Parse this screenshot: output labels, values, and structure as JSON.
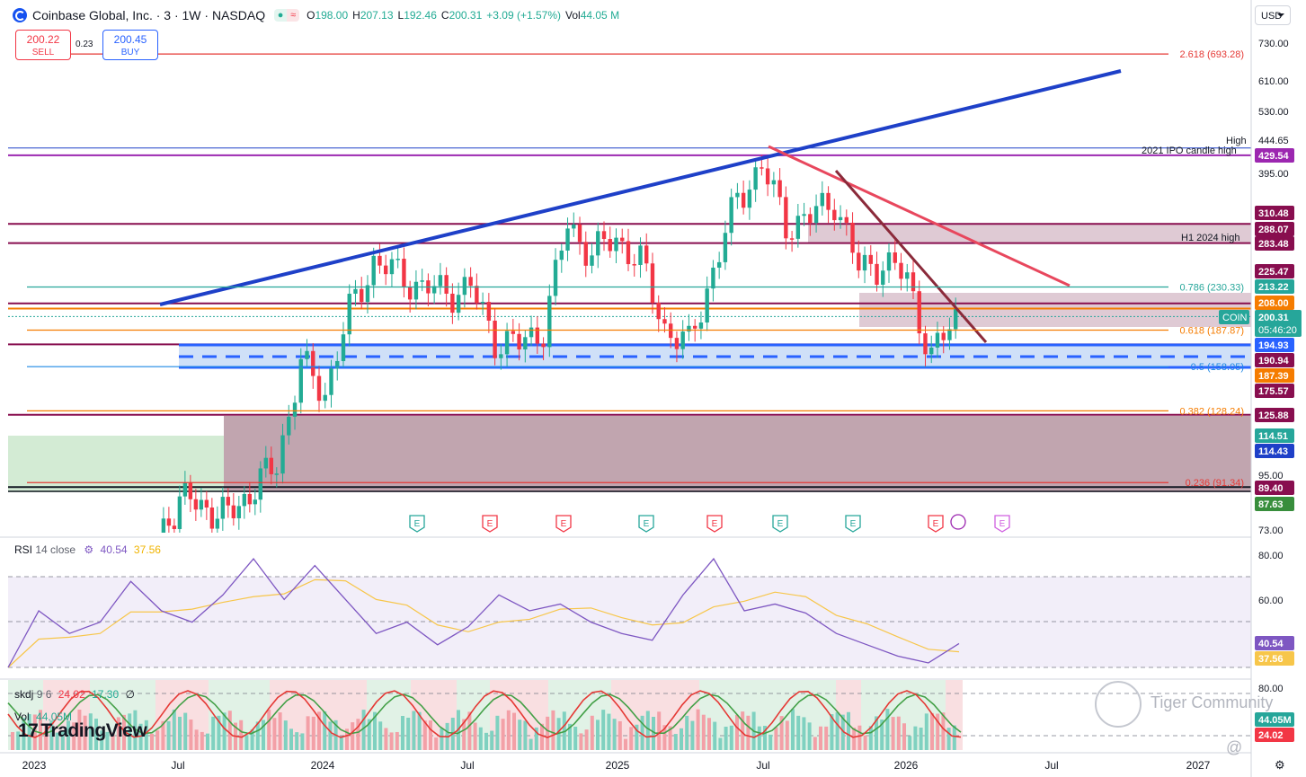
{
  "header": {
    "symbol_title": "Coinbase Global, Inc. · 3 · 1W · NASDAQ",
    "o_label": "O",
    "o_value": "198.00",
    "h_label": "H",
    "h_value": "207.13",
    "l_label": "L",
    "l_value": "192.46",
    "c_label": "C",
    "c_value": "200.31",
    "change": "+3.09 (+1.57%)",
    "vol_label": "Vol",
    "vol_value": "44.05 M",
    "currency": "USD"
  },
  "trade": {
    "sell_price": "200.22",
    "sell_label": "SELL",
    "spread": "0.23",
    "buy_price": "200.45",
    "buy_label": "BUY"
  },
  "rsi_legend": {
    "name": "RSI",
    "params": "14 close",
    "v1": "40.54",
    "v2": "37.56"
  },
  "skdj_legend": {
    "name": "skdj",
    "params": "9 6",
    "v1": "24.02",
    "v2": "17.30",
    "v3": "∅"
  },
  "vol_legend": {
    "name": "Vol",
    "value": "44.05M"
  },
  "watermark": {
    "brand": "TradingView",
    "community": "Tiger Community",
    "at": "@",
    "gear": "⚙"
  },
  "colors": {
    "up": "#22ab94",
    "down": "#f23645",
    "trend_blue": "#1e40c8",
    "trend_red": "#e8475d",
    "trend_dark": "#8b2a3a",
    "purple_line": "#9c27b0",
    "maroon_line": "#880e4f",
    "rsi_line": "#7e57c2",
    "rsi_ma": "#f7c64a",
    "skdj_k": "#e53935",
    "skdj_d": "#43a047"
  },
  "chart_data": {
    "type": "candlestick",
    "symbol": "COIN",
    "timeframe": "1W",
    "y_scale": "log",
    "ylim": [
      73,
      780
    ],
    "y_ticks": [
      "730.00",
      "610.00",
      "530.00",
      "444.65",
      "395.00",
      "310.48",
      "288.07",
      "283.48",
      "225.47",
      "213.22",
      "208.00",
      "200.31",
      "194.93",
      "190.94",
      "187.39",
      "175.57",
      "125.88",
      "114.51",
      "114.43",
      "95.00",
      "89.40",
      "87.63",
      "73.00"
    ],
    "x_labels": [
      "2023",
      "Jul",
      "2024",
      "Jul",
      "2025",
      "Jul",
      "2026",
      "Jul",
      "2027"
    ],
    "last_price": "200.31",
    "countdown": "05:46:20",
    "close_series_approx": [
      {
        "date": "2023-01",
        "value": 40
      },
      {
        "date": "2023-03",
        "value": 60
      },
      {
        "date": "2023-05",
        "value": 55
      },
      {
        "date": "2023-07",
        "value": 85
      },
      {
        "date": "2023-09",
        "value": 78
      },
      {
        "date": "2023-11",
        "value": 100
      },
      {
        "date": "2023-12",
        "value": 160
      },
      {
        "date": "2024-01",
        "value": 140
      },
      {
        "date": "2024-02",
        "value": 205
      },
      {
        "date": "2024-03",
        "value": 260
      },
      {
        "date": "2024-04",
        "value": 245
      },
      {
        "date": "2024-05",
        "value": 230
      },
      {
        "date": "2024-06",
        "value": 225
      },
      {
        "date": "2024-07",
        "value": 230
      },
      {
        "date": "2024-08",
        "value": 180
      },
      {
        "date": "2024-09",
        "value": 175
      },
      {
        "date": "2024-10",
        "value": 190
      },
      {
        "date": "2024-11",
        "value": 310
      },
      {
        "date": "2024-12",
        "value": 270
      },
      {
        "date": "2025-01",
        "value": 290
      },
      {
        "date": "2025-02",
        "value": 260
      },
      {
        "date": "2025-03",
        "value": 190
      },
      {
        "date": "2025-04",
        "value": 175
      },
      {
        "date": "2025-05",
        "value": 250
      },
      {
        "date": "2025-06",
        "value": 350
      },
      {
        "date": "2025-07",
        "value": 410
      },
      {
        "date": "2025-08",
        "value": 310
      },
      {
        "date": "2025-09",
        "value": 320
      },
      {
        "date": "2025-10",
        "value": 350
      },
      {
        "date": "2025-11",
        "value": 250
      },
      {
        "date": "2025-12",
        "value": 260
      },
      {
        "date": "2026-01",
        "value": 240
      },
      {
        "date": "2026-02",
        "value": 165
      },
      {
        "date": "2026-03",
        "value": 200.31
      }
    ],
    "fib_levels": [
      {
        "label": "2.618 (693.28)",
        "value": 693.28
      },
      {
        "label": "0.786 (230.33)",
        "value": 230.33
      },
      {
        "label": "0.618 (187.87)",
        "value": 187.87
      },
      {
        "label": "0.5 (158.05)",
        "value": 158.05
      },
      {
        "label": "0.382 (128.24)",
        "value": 128.24
      },
      {
        "label": "0.236 (91.34)",
        "value": 91.34
      }
    ],
    "annotations": [
      "2021 IPO candle high",
      "H1 2024 high",
      "High"
    ],
    "horizontal_levels": [
      {
        "label": "429.54",
        "value": 429.54
      },
      {
        "label": "310.48",
        "value": 310.48
      },
      {
        "label": "288.07",
        "value": 288.07
      },
      {
        "label": "283.48",
        "value": 283.48
      },
      {
        "label": "225.47",
        "value": 225.47
      },
      {
        "label": "213.22",
        "value": 213.22
      },
      {
        "label": "208.00",
        "value": 208.0
      },
      {
        "label": "194.93",
        "value": 194.93
      },
      {
        "label": "190.94",
        "value": 190.94
      },
      {
        "label": "187.39",
        "value": 187.39
      },
      {
        "label": "175.57",
        "value": 175.57
      },
      {
        "label": "125.88",
        "value": 125.88
      },
      {
        "label": "114.51",
        "value": 114.51
      },
      {
        "label": "114.43",
        "value": 114.43
      },
      {
        "label": "89.40",
        "value": 89.4
      },
      {
        "label": "87.63",
        "value": 87.63
      }
    ],
    "high_label": "High",
    "high_value": "444.65",
    "earnings_markers": [
      "E",
      "E",
      "E",
      "E",
      "E",
      "E",
      "E",
      "E",
      "E"
    ],
    "rsi": {
      "ticks": [
        "80.00",
        "60.00"
      ],
      "value": "40.54",
      "ma": "37.56",
      "series_approx": [
        30,
        55,
        45,
        50,
        68,
        55,
        50,
        62,
        78,
        60,
        75,
        60,
        45,
        50,
        40,
        48,
        62,
        55,
        58,
        50,
        45,
        42,
        62,
        78,
        55,
        58,
        54,
        45,
        40,
        35,
        32,
        40.54
      ]
    },
    "skdj": {
      "ticks": [
        "80.00",
        "20.00"
      ],
      "k": "24.02",
      "d": "17.30",
      "volume": "44.05M"
    }
  }
}
